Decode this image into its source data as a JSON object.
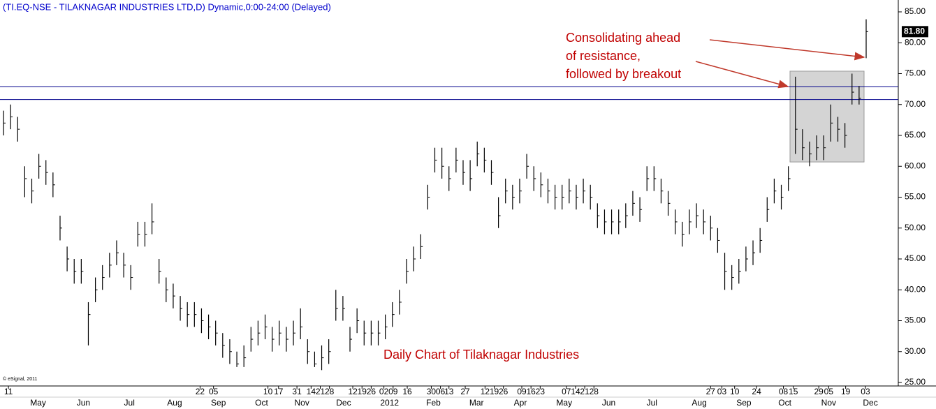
{
  "chart_data": {
    "type": "ohlc",
    "title": "(TI.EQ-NSE - TILAKNAGAR INDUSTRIES LTD,D) Dynamic,0:00-24:00 (Delayed)",
    "copyright": "© eSignal, 2011",
    "annotations": [
      "Consolidating ahead",
      "of resistance,",
      "followed by breakout",
      "Daily Chart of Tilaknagar Industries"
    ],
    "color": "#000000",
    "series": {
      "close": [
        67,
        68,
        66,
        58,
        56,
        60,
        59,
        57,
        50,
        45,
        43,
        43,
        36,
        40,
        42,
        44,
        46,
        44,
        42,
        49,
        49,
        51,
        43,
        40,
        39,
        37,
        36,
        36,
        35,
        34,
        33,
        31,
        30,
        28,
        29,
        32,
        33,
        34,
        32,
        33,
        32,
        33,
        34,
        30,
        28,
        29,
        30,
        37,
        37,
        32,
        35,
        33,
        33,
        33,
        34,
        36,
        38,
        43,
        45,
        47,
        55,
        61,
        60,
        58,
        61,
        59,
        58,
        62,
        61,
        59,
        52,
        56,
        55,
        56,
        60,
        58,
        57,
        56,
        55,
        55,
        56,
        55,
        56,
        55,
        52,
        51,
        51,
        51,
        52,
        54,
        53,
        58,
        58,
        56,
        54,
        51,
        49,
        51,
        52,
        51,
        50,
        48,
        43,
        42,
        43,
        45,
        46,
        48,
        53,
        56,
        55,
        58,
        66,
        63,
        62,
        63,
        63,
        67,
        66,
        65,
        72,
        71,
        81.8
      ],
      "high": [
        69,
        70,
        68,
        60,
        58,
        62,
        61,
        59,
        52,
        47,
        45,
        45,
        38,
        42,
        44,
        46,
        48,
        46,
        44,
        51,
        51,
        54,
        45,
        42,
        41,
        39,
        38,
        38,
        37,
        36,
        35,
        33,
        32,
        30,
        31,
        34,
        35,
        36,
        34,
        35,
        34,
        35,
        37,
        32,
        30,
        31,
        32,
        40,
        39,
        34,
        37,
        35,
        35,
        35,
        36,
        38,
        40,
        45,
        47,
        49,
        57,
        63,
        63,
        60,
        63,
        61,
        61,
        64,
        63,
        61,
        55,
        58,
        57,
        58,
        62,
        60,
        59,
        58,
        57,
        57,
        58,
        57,
        58,
        57,
        54,
        53,
        53,
        53,
        54,
        56,
        55,
        60,
        60,
        58,
        56,
        53,
        51,
        53,
        54,
        53,
        52,
        50,
        46,
        44,
        45,
        47,
        48,
        50,
        55,
        58,
        57,
        60,
        74.5,
        66,
        64,
        65,
        65,
        70,
        68,
        67,
        75,
        73,
        83.8
      ],
      "low": [
        65,
        66,
        64,
        55,
        54,
        58,
        57,
        55,
        48,
        43,
        41,
        41,
        31,
        38,
        40,
        42,
        44,
        42,
        40,
        47,
        47,
        49,
        41,
        38,
        37,
        35,
        34,
        34,
        33,
        32,
        31,
        29,
        28,
        27.5,
        27.5,
        30,
        31,
        32,
        30,
        31,
        30,
        31,
        32,
        28,
        27.5,
        27,
        28,
        35,
        35,
        30,
        33,
        31,
        31,
        31,
        32,
        34,
        36,
        41,
        43,
        45,
        53,
        59,
        58,
        56,
        59,
        57,
        56,
        60,
        59,
        57,
        50,
        54,
        53,
        54,
        58,
        56,
        55,
        54,
        53,
        53,
        54,
        53,
        54,
        53,
        50,
        49,
        49,
        49,
        50,
        52,
        51,
        56,
        56,
        54,
        52,
        49,
        47,
        49,
        50,
        49,
        48,
        46,
        40,
        40,
        41,
        43,
        44,
        46,
        51,
        54,
        53,
        56,
        62,
        61,
        60,
        61,
        61,
        64,
        64,
        63,
        70,
        70,
        77.5
      ]
    },
    "last_price": {
      "value": 81.8,
      "label": "81.80"
    },
    "resistance_lines": [
      72.9,
      70.8
    ],
    "highlight_range": [
      60.7,
      75.4
    ],
    "ylim": [
      25,
      85
    ],
    "yticks": [
      {
        "value": 25,
        "label": "25.00"
      },
      {
        "value": 30,
        "label": "30.00"
      },
      {
        "value": 35,
        "label": "35.00"
      },
      {
        "value": 40,
        "label": "40.00"
      },
      {
        "value": 45,
        "label": "45.00"
      },
      {
        "value": 50,
        "label": "50.00"
      },
      {
        "value": 55,
        "label": "55.00"
      },
      {
        "value": 60,
        "label": "60.00"
      },
      {
        "value": 65,
        "label": "65.00"
      },
      {
        "value": 70,
        "label": "70.00"
      },
      {
        "value": 75,
        "label": "75.00"
      },
      {
        "value": 80,
        "label": "80.00"
      },
      {
        "value": 85,
        "label": "85.00"
      }
    ],
    "xticks": [
      {
        "value": 0.7,
        "label": "11"
      },
      {
        "value": 27.8,
        "label": "22"
      },
      {
        "value": 29.7,
        "label": "05"
      },
      {
        "value": 37.4,
        "label": "10"
      },
      {
        "value": 38.9,
        "label": "17"
      },
      {
        "value": 41.5,
        "label": "31"
      },
      {
        "value": 43.5,
        "label": "14"
      },
      {
        "value": 44.8,
        "label": "21"
      },
      {
        "value": 46.1,
        "label": "28"
      },
      {
        "value": 49.4,
        "label": "12"
      },
      {
        "value": 50.7,
        "label": "19"
      },
      {
        "value": 52,
        "label": "26"
      },
      {
        "value": 53.8,
        "label": "02"
      },
      {
        "value": 55.1,
        "label": "09"
      },
      {
        "value": 57.1,
        "label": "16"
      },
      {
        "value": 60.5,
        "label": "30"
      },
      {
        "value": 61.8,
        "label": "06"
      },
      {
        "value": 63,
        "label": "13"
      },
      {
        "value": 65.3,
        "label": "27"
      },
      {
        "value": 68.1,
        "label": "12"
      },
      {
        "value": 69.4,
        "label": "19"
      },
      {
        "value": 70.7,
        "label": "26"
      },
      {
        "value": 73.3,
        "label": "09"
      },
      {
        "value": 74.6,
        "label": "16"
      },
      {
        "value": 75.9,
        "label": "23"
      },
      {
        "value": 79.6,
        "label": "07"
      },
      {
        "value": 80.9,
        "label": "14"
      },
      {
        "value": 82.2,
        "label": "21"
      },
      {
        "value": 83.5,
        "label": "28"
      },
      {
        "value": 100,
        "label": "27"
      },
      {
        "value": 101.6,
        "label": "03"
      },
      {
        "value": 103.4,
        "label": "10"
      },
      {
        "value": 106.5,
        "label": "24"
      },
      {
        "value": 110.3,
        "label": "08"
      },
      {
        "value": 111.7,
        "label": "15"
      },
      {
        "value": 115.3,
        "label": "29"
      },
      {
        "value": 116.7,
        "label": "05"
      },
      {
        "value": 119.1,
        "label": "19"
      },
      {
        "value": 121.9,
        "label": "03"
      }
    ],
    "month_labels": [
      {
        "value": 4.9,
        "label": "May"
      },
      {
        "value": 11.3,
        "label": "Jun"
      },
      {
        "value": 17.8,
        "label": "Jul"
      },
      {
        "value": 24.2,
        "label": "Aug"
      },
      {
        "value": 30.4,
        "label": "Sep"
      },
      {
        "value": 36.5,
        "label": "Oct"
      },
      {
        "value": 42.2,
        "label": "Nov"
      },
      {
        "value": 48.1,
        "label": "Dec"
      },
      {
        "value": 54.6,
        "label": "2012"
      },
      {
        "value": 60.8,
        "label": "Feb"
      },
      {
        "value": 66.9,
        "label": "Mar"
      },
      {
        "value": 73.1,
        "label": "Apr"
      },
      {
        "value": 79.3,
        "label": "May"
      },
      {
        "value": 85.6,
        "label": "Jun"
      },
      {
        "value": 91.7,
        "label": "Jul"
      },
      {
        "value": 98.4,
        "label": "Aug"
      },
      {
        "value": 104.7,
        "label": "Sep"
      },
      {
        "value": 110.5,
        "label": "Oct"
      },
      {
        "value": 116.7,
        "label": "Nov"
      },
      {
        "value": 122.6,
        "label": "Dec"
      }
    ],
    "xlim": [
      0,
      122
    ]
  }
}
